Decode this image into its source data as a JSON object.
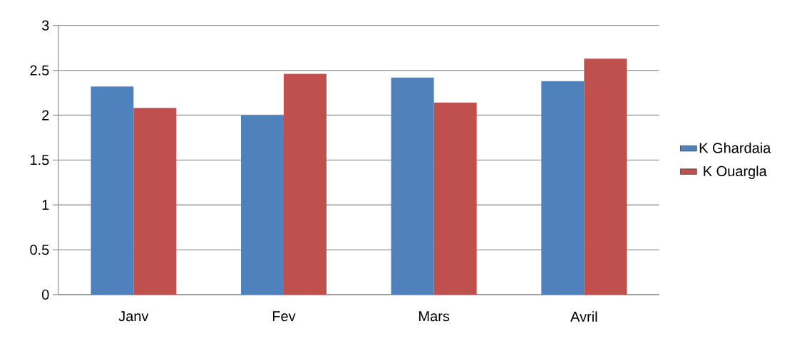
{
  "chart_data": {
    "type": "bar",
    "categories": [
      "Janv",
      "Fev",
      "Mars",
      "Avril"
    ],
    "series": [
      {
        "name": "K Ghardaia",
        "color": "#4f81bd",
        "values": [
          2.32,
          2.0,
          2.42,
          2.38
        ]
      },
      {
        "name": "K Ouargla",
        "color": "#c0504d",
        "values": [
          2.08,
          2.46,
          2.14,
          2.63
        ]
      }
    ],
    "ylim": [
      0,
      3
    ],
    "yticks": [
      0,
      0.5,
      1,
      1.5,
      2,
      2.5,
      3
    ],
    "grid": "y",
    "legend": "right"
  }
}
